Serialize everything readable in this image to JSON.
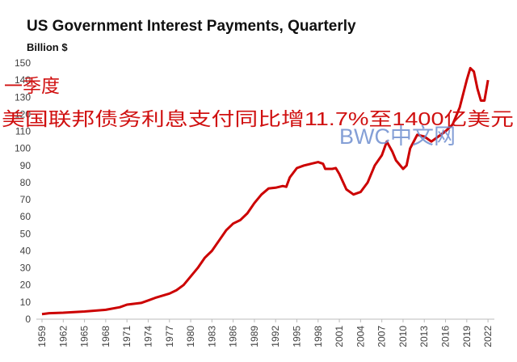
{
  "chart_data": {
    "type": "line",
    "title": "US Government Interest Payments, Quarterly",
    "subtitle": "Billion $",
    "annotations": [
      "一季度",
      "美国联邦债务利息支付同比增11.7%至1400亿美元",
      "BWC中文网"
    ],
    "x": [
      1959,
      1960,
      1962,
      1965,
      1968,
      1970,
      1971,
      1973,
      1974,
      1975,
      1977,
      1978,
      1979,
      1980,
      1981,
      1982,
      1983,
      1984,
      1985,
      1986,
      1987,
      1988,
      1989,
      1990,
      1991,
      1992,
      1993,
      1993.5,
      1994,
      1995,
      1996,
      1997,
      1998,
      1998.7,
      1999,
      2000,
      2000.5,
      2001,
      2002,
      2003,
      2004,
      2005,
      2006,
      2007,
      2007.7,
      2008.5,
      2009,
      2010,
      2010.5,
      2011,
      2012,
      2013,
      2014,
      2015,
      2016,
      2017,
      2018,
      2019,
      2019.5,
      2020,
      2020.5,
      2021,
      2021.5,
      2022
    ],
    "values": [
      3,
      3.5,
      3.8,
      4.5,
      5.5,
      7,
      8.5,
      9.5,
      11,
      12.5,
      15,
      17,
      20,
      25,
      30,
      36,
      40,
      46,
      52,
      56,
      58,
      62,
      68,
      73,
      76.5,
      77,
      78,
      77.5,
      83,
      88.5,
      90,
      91,
      92,
      91,
      88,
      88,
      88.5,
      85,
      76,
      73,
      74.5,
      80,
      90,
      96,
      104,
      98,
      93,
      88,
      90,
      100,
      108,
      107,
      104,
      107,
      110,
      114,
      124,
      140,
      147,
      145,
      135,
      128,
      128,
      140
    ],
    "color": "#cc0000",
    "xlim": [
      1958.2,
      2022.9
    ],
    "xticks": [
      1959,
      1962,
      1965,
      1968,
      1971,
      1974,
      1977,
      1980,
      1983,
      1986,
      1989,
      1992,
      1995,
      1998,
      2001,
      2004,
      2007,
      2010,
      2013,
      2016,
      2019,
      2022
    ],
    "ylim": [
      0,
      150
    ],
    "yticks": [
      0,
      10,
      20,
      30,
      40,
      50,
      60,
      70,
      80,
      90,
      100,
      110,
      120,
      130,
      140,
      150
    ],
    "grid": false
  }
}
